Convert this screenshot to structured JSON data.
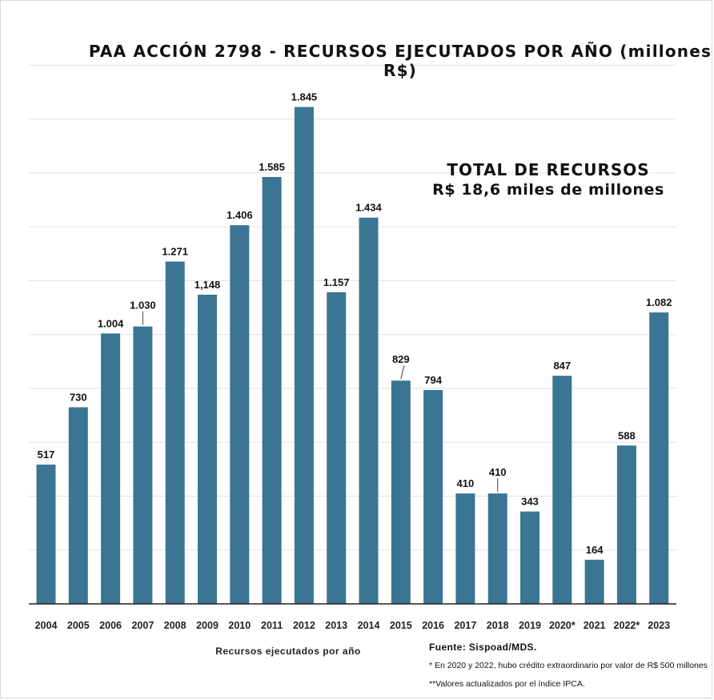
{
  "chart_data": {
    "type": "bar",
    "title": "PAA ACCIÓN 2798 - RECURSOS EJECUTADOS POR AÑO (millones R$)",
    "xlabel": "Recursos ejecutados por año",
    "ylabel": "",
    "categories": [
      "2004",
      "2005",
      "2006",
      "2007",
      "2008",
      "2009",
      "2010",
      "2011",
      "2012",
      "2013",
      "2014",
      "2015",
      "2016",
      "2017",
      "2018",
      "2019",
      "2020*",
      "2021",
      "2022*",
      "2023"
    ],
    "values": [
      517,
      730,
      1004,
      1030,
      1271,
      1148,
      1406,
      1585,
      1845,
      1157,
      1434,
      829,
      794,
      410,
      410,
      343,
      847,
      164,
      588,
      1082
    ],
    "value_labels": [
      "517",
      "730",
      "1.004",
      "1.030",
      "1.271",
      "1,148",
      "1.406",
      "1.585",
      "1.845",
      "1.157",
      "1.434",
      "829",
      "794",
      "410",
      "410",
      "343",
      "847",
      "164",
      "588",
      "1.082"
    ],
    "ylim": [
      0,
      2000
    ],
    "grid": true,
    "bar_color": "#3a7593"
  },
  "annotations": {
    "total_title": "TOTAL DE RECURSOS",
    "total_value": "R$ 18,6 miles de millones"
  },
  "footer": {
    "source": "Fuente: Sispoad/MDS.",
    "note1": "*  En 2020 y 2022, hubo crédito extraordinario por valor de R$ 500 millones",
    "note2": "**Valores actualizados por el índice IPCA."
  }
}
